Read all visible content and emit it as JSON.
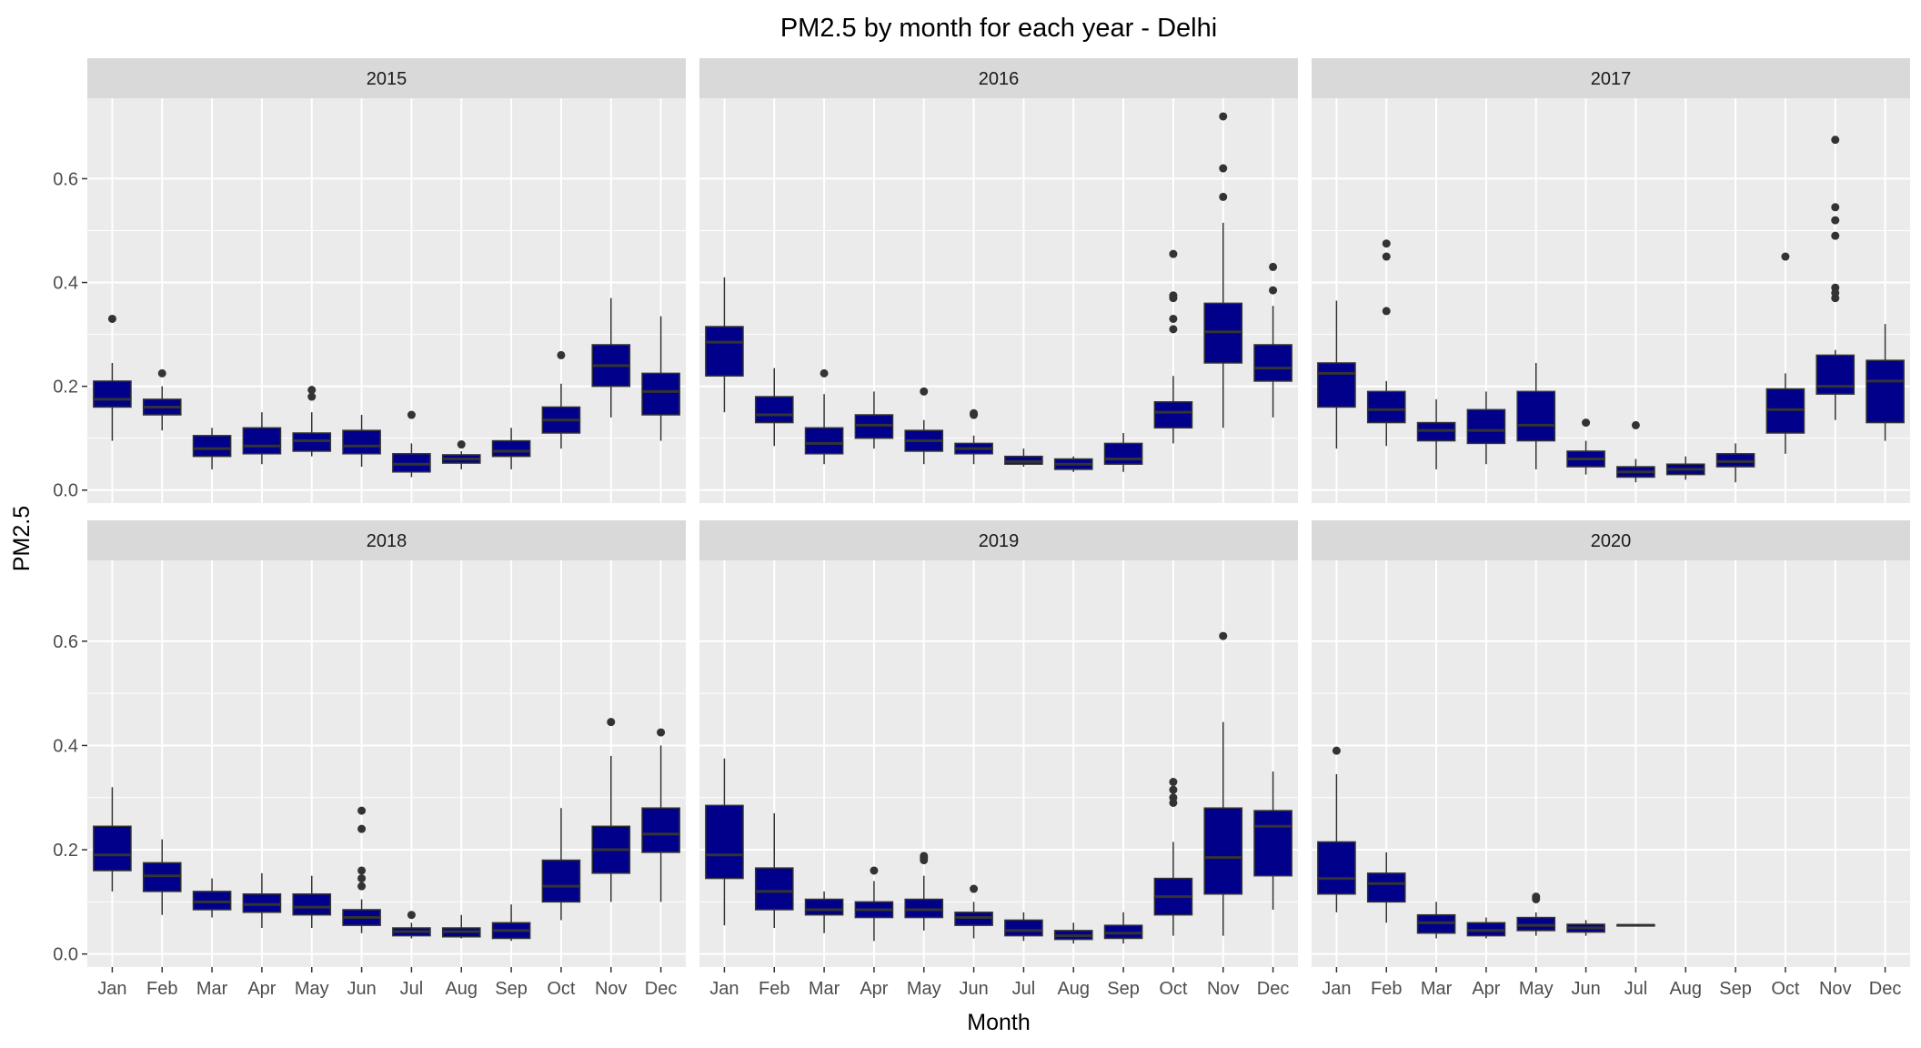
{
  "chart_data": {
    "type": "box",
    "title": "PM2.5 by month for each year - Delhi",
    "xlabel": "Month",
    "ylabel": "PM2.5",
    "ylim": [
      -0.025,
      0.755
    ],
    "yticks": [
      0.0,
      0.2,
      0.4,
      0.6
    ],
    "ytick_labels": [
      "0.0",
      "0.2",
      "0.4",
      "0.6"
    ],
    "categories": [
      "Jan",
      "Feb",
      "Mar",
      "Apr",
      "May",
      "Jun",
      "Jul",
      "Aug",
      "Sep",
      "Oct",
      "Nov",
      "Dec"
    ],
    "grid": true,
    "box_fill": "#00008B",
    "box_line": "#333333",
    "panel_bg": "#EBEBEB",
    "strip_bg": "#D9D9D9",
    "panels": [
      {
        "label": "2015",
        "boxes": [
          {
            "cat": "Jan",
            "lo": 0.095,
            "q1": 0.16,
            "med": 0.175,
            "q3": 0.21,
            "hi": 0.245,
            "outliers": [
              0.33
            ]
          },
          {
            "cat": "Feb",
            "lo": 0.115,
            "q1": 0.145,
            "med": 0.16,
            "q3": 0.175,
            "hi": 0.2,
            "outliers": [
              0.225
            ]
          },
          {
            "cat": "Mar",
            "lo": 0.04,
            "q1": 0.065,
            "med": 0.08,
            "q3": 0.105,
            "hi": 0.12,
            "outliers": []
          },
          {
            "cat": "Apr",
            "lo": 0.05,
            "q1": 0.07,
            "med": 0.085,
            "q3": 0.12,
            "hi": 0.15,
            "outliers": []
          },
          {
            "cat": "May",
            "lo": 0.065,
            "q1": 0.075,
            "med": 0.095,
            "q3": 0.11,
            "hi": 0.15,
            "outliers": [
              0.18,
              0.193
            ]
          },
          {
            "cat": "Jun",
            "lo": 0.045,
            "q1": 0.07,
            "med": 0.085,
            "q3": 0.115,
            "hi": 0.145,
            "outliers": []
          },
          {
            "cat": "Jul",
            "lo": 0.025,
            "q1": 0.035,
            "med": 0.05,
            "q3": 0.07,
            "hi": 0.09,
            "outliers": [
              0.145
            ]
          },
          {
            "cat": "Aug",
            "lo": 0.04,
            "q1": 0.052,
            "med": 0.06,
            "q3": 0.068,
            "hi": 0.075,
            "outliers": [
              0.088
            ]
          },
          {
            "cat": "Sep",
            "lo": 0.04,
            "q1": 0.065,
            "med": 0.075,
            "q3": 0.095,
            "hi": 0.12,
            "outliers": []
          },
          {
            "cat": "Oct",
            "lo": 0.08,
            "q1": 0.11,
            "med": 0.135,
            "q3": 0.16,
            "hi": 0.205,
            "outliers": [
              0.26
            ]
          },
          {
            "cat": "Nov",
            "lo": 0.14,
            "q1": 0.2,
            "med": 0.24,
            "q3": 0.28,
            "hi": 0.37,
            "outliers": []
          },
          {
            "cat": "Dec",
            "lo": 0.095,
            "q1": 0.145,
            "med": 0.19,
            "q3": 0.225,
            "hi": 0.335,
            "outliers": []
          }
        ]
      },
      {
        "label": "2016",
        "boxes": [
          {
            "cat": "Jan",
            "lo": 0.15,
            "q1": 0.22,
            "med": 0.285,
            "q3": 0.315,
            "hi": 0.41,
            "outliers": []
          },
          {
            "cat": "Feb",
            "lo": 0.085,
            "q1": 0.13,
            "med": 0.145,
            "q3": 0.18,
            "hi": 0.235,
            "outliers": []
          },
          {
            "cat": "Mar",
            "lo": 0.05,
            "q1": 0.07,
            "med": 0.09,
            "q3": 0.12,
            "hi": 0.185,
            "outliers": [
              0.225
            ]
          },
          {
            "cat": "Apr",
            "lo": 0.08,
            "q1": 0.1,
            "med": 0.125,
            "q3": 0.145,
            "hi": 0.19,
            "outliers": []
          },
          {
            "cat": "May",
            "lo": 0.05,
            "q1": 0.075,
            "med": 0.095,
            "q3": 0.115,
            "hi": 0.135,
            "outliers": [
              0.19
            ]
          },
          {
            "cat": "Jun",
            "lo": 0.05,
            "q1": 0.07,
            "med": 0.08,
            "q3": 0.09,
            "hi": 0.105,
            "outliers": [
              0.145,
              0.148
            ]
          },
          {
            "cat": "Jul",
            "lo": 0.045,
            "q1": 0.05,
            "med": 0.055,
            "q3": 0.065,
            "hi": 0.08,
            "outliers": []
          },
          {
            "cat": "Aug",
            "lo": 0.035,
            "q1": 0.04,
            "med": 0.05,
            "q3": 0.06,
            "hi": 0.065,
            "outliers": []
          },
          {
            "cat": "Sep",
            "lo": 0.035,
            "q1": 0.05,
            "med": 0.06,
            "q3": 0.09,
            "hi": 0.11,
            "outliers": []
          },
          {
            "cat": "Oct",
            "lo": 0.09,
            "q1": 0.12,
            "med": 0.15,
            "q3": 0.17,
            "hi": 0.22,
            "outliers": [
              0.31,
              0.33,
              0.37,
              0.375,
              0.455
            ]
          },
          {
            "cat": "Nov",
            "lo": 0.12,
            "q1": 0.245,
            "med": 0.305,
            "q3": 0.36,
            "hi": 0.515,
            "outliers": [
              0.565,
              0.62,
              0.72
            ]
          },
          {
            "cat": "Dec",
            "lo": 0.14,
            "q1": 0.21,
            "med": 0.235,
            "q3": 0.28,
            "hi": 0.355,
            "outliers": [
              0.385,
              0.43
            ]
          }
        ]
      },
      {
        "label": "2017",
        "boxes": [
          {
            "cat": "Jan",
            "lo": 0.08,
            "q1": 0.16,
            "med": 0.225,
            "q3": 0.245,
            "hi": 0.365,
            "outliers": []
          },
          {
            "cat": "Feb",
            "lo": 0.085,
            "q1": 0.13,
            "med": 0.155,
            "q3": 0.19,
            "hi": 0.21,
            "outliers": [
              0.345,
              0.45,
              0.475
            ]
          },
          {
            "cat": "Mar",
            "lo": 0.04,
            "q1": 0.095,
            "med": 0.115,
            "q3": 0.13,
            "hi": 0.175,
            "outliers": []
          },
          {
            "cat": "Apr",
            "lo": 0.05,
            "q1": 0.09,
            "med": 0.115,
            "q3": 0.155,
            "hi": 0.19,
            "outliers": []
          },
          {
            "cat": "May",
            "lo": 0.04,
            "q1": 0.095,
            "med": 0.125,
            "q3": 0.19,
            "hi": 0.245,
            "outliers": []
          },
          {
            "cat": "Jun",
            "lo": 0.03,
            "q1": 0.045,
            "med": 0.06,
            "q3": 0.075,
            "hi": 0.095,
            "outliers": [
              0.13
            ]
          },
          {
            "cat": "Jul",
            "lo": 0.015,
            "q1": 0.025,
            "med": 0.035,
            "q3": 0.045,
            "hi": 0.06,
            "outliers": [
              0.125
            ]
          },
          {
            "cat": "Aug",
            "lo": 0.02,
            "q1": 0.03,
            "med": 0.04,
            "q3": 0.05,
            "hi": 0.065,
            "outliers": []
          },
          {
            "cat": "Sep",
            "lo": 0.015,
            "q1": 0.045,
            "med": 0.055,
            "q3": 0.07,
            "hi": 0.09,
            "outliers": []
          },
          {
            "cat": "Oct",
            "lo": 0.07,
            "q1": 0.11,
            "med": 0.155,
            "q3": 0.195,
            "hi": 0.225,
            "outliers": [
              0.45
            ]
          },
          {
            "cat": "Nov",
            "lo": 0.135,
            "q1": 0.185,
            "med": 0.2,
            "q3": 0.26,
            "hi": 0.27,
            "outliers": [
              0.37,
              0.38,
              0.39,
              0.49,
              0.52,
              0.545,
              0.675
            ]
          },
          {
            "cat": "Dec",
            "lo": 0.095,
            "q1": 0.13,
            "med": 0.21,
            "q3": 0.25,
            "hi": 0.32,
            "outliers": []
          }
        ]
      },
      {
        "label": "2018",
        "boxes": [
          {
            "cat": "Jan",
            "lo": 0.12,
            "q1": 0.16,
            "med": 0.19,
            "q3": 0.245,
            "hi": 0.32,
            "outliers": []
          },
          {
            "cat": "Feb",
            "lo": 0.075,
            "q1": 0.12,
            "med": 0.15,
            "q3": 0.175,
            "hi": 0.22,
            "outliers": []
          },
          {
            "cat": "Mar",
            "lo": 0.07,
            "q1": 0.085,
            "med": 0.1,
            "q3": 0.12,
            "hi": 0.145,
            "outliers": []
          },
          {
            "cat": "Apr",
            "lo": 0.05,
            "q1": 0.08,
            "med": 0.095,
            "q3": 0.115,
            "hi": 0.155,
            "outliers": []
          },
          {
            "cat": "May",
            "lo": 0.05,
            "q1": 0.075,
            "med": 0.09,
            "q3": 0.115,
            "hi": 0.15,
            "outliers": []
          },
          {
            "cat": "Jun",
            "lo": 0.04,
            "q1": 0.055,
            "med": 0.07,
            "q3": 0.085,
            "hi": 0.105,
            "outliers": [
              0.13,
              0.145,
              0.16,
              0.24,
              0.275
            ]
          },
          {
            "cat": "Jul",
            "lo": 0.03,
            "q1": 0.035,
            "med": 0.043,
            "q3": 0.05,
            "hi": 0.06,
            "outliers": [
              0.075
            ]
          },
          {
            "cat": "Aug",
            "lo": 0.03,
            "q1": 0.033,
            "med": 0.043,
            "q3": 0.05,
            "hi": 0.075,
            "outliers": []
          },
          {
            "cat": "Sep",
            "lo": 0.025,
            "q1": 0.03,
            "med": 0.045,
            "q3": 0.06,
            "hi": 0.095,
            "outliers": []
          },
          {
            "cat": "Oct",
            "lo": 0.065,
            "q1": 0.1,
            "med": 0.13,
            "q3": 0.18,
            "hi": 0.28,
            "outliers": []
          },
          {
            "cat": "Nov",
            "lo": 0.1,
            "q1": 0.155,
            "med": 0.2,
            "q3": 0.245,
            "hi": 0.38,
            "outliers": [
              0.445
            ]
          },
          {
            "cat": "Dec",
            "lo": 0.1,
            "q1": 0.195,
            "med": 0.23,
            "q3": 0.28,
            "hi": 0.4,
            "outliers": [
              0.425
            ]
          }
        ]
      },
      {
        "label": "2019",
        "boxes": [
          {
            "cat": "Jan",
            "lo": 0.055,
            "q1": 0.145,
            "med": 0.19,
            "q3": 0.285,
            "hi": 0.375,
            "outliers": []
          },
          {
            "cat": "Feb",
            "lo": 0.05,
            "q1": 0.085,
            "med": 0.12,
            "q3": 0.165,
            "hi": 0.27,
            "outliers": []
          },
          {
            "cat": "Mar",
            "lo": 0.04,
            "q1": 0.075,
            "med": 0.085,
            "q3": 0.105,
            "hi": 0.12,
            "outliers": []
          },
          {
            "cat": "Apr",
            "lo": 0.025,
            "q1": 0.07,
            "med": 0.085,
            "q3": 0.1,
            "hi": 0.14,
            "outliers": [
              0.16
            ]
          },
          {
            "cat": "May",
            "lo": 0.045,
            "q1": 0.07,
            "med": 0.085,
            "q3": 0.105,
            "hi": 0.15,
            "outliers": [
              0.18,
              0.185,
              0.188
            ]
          },
          {
            "cat": "Jun",
            "lo": 0.03,
            "q1": 0.055,
            "med": 0.07,
            "q3": 0.08,
            "hi": 0.1,
            "outliers": [
              0.125
            ]
          },
          {
            "cat": "Jul",
            "lo": 0.025,
            "q1": 0.035,
            "med": 0.045,
            "q3": 0.065,
            "hi": 0.08,
            "outliers": []
          },
          {
            "cat": "Aug",
            "lo": 0.02,
            "q1": 0.028,
            "med": 0.035,
            "q3": 0.045,
            "hi": 0.06,
            "outliers": []
          },
          {
            "cat": "Sep",
            "lo": 0.02,
            "q1": 0.03,
            "med": 0.04,
            "q3": 0.055,
            "hi": 0.08,
            "outliers": []
          },
          {
            "cat": "Oct",
            "lo": 0.035,
            "q1": 0.075,
            "med": 0.11,
            "q3": 0.145,
            "hi": 0.215,
            "outliers": [
              0.29,
              0.3,
              0.315,
              0.33
            ]
          },
          {
            "cat": "Nov",
            "lo": 0.035,
            "q1": 0.115,
            "med": 0.185,
            "q3": 0.28,
            "hi": 0.445,
            "outliers": [
              0.61
            ]
          },
          {
            "cat": "Dec",
            "lo": 0.085,
            "q1": 0.15,
            "med": 0.245,
            "q3": 0.275,
            "hi": 0.35,
            "outliers": []
          }
        ]
      },
      {
        "label": "2020",
        "boxes": [
          {
            "cat": "Jan",
            "lo": 0.08,
            "q1": 0.115,
            "med": 0.145,
            "q3": 0.215,
            "hi": 0.345,
            "outliers": [
              0.39
            ]
          },
          {
            "cat": "Feb",
            "lo": 0.06,
            "q1": 0.1,
            "med": 0.135,
            "q3": 0.155,
            "hi": 0.195,
            "outliers": []
          },
          {
            "cat": "Mar",
            "lo": 0.03,
            "q1": 0.04,
            "med": 0.06,
            "q3": 0.075,
            "hi": 0.1,
            "outliers": []
          },
          {
            "cat": "Apr",
            "lo": 0.03,
            "q1": 0.035,
            "med": 0.045,
            "q3": 0.06,
            "hi": 0.07,
            "outliers": []
          },
          {
            "cat": "May",
            "lo": 0.035,
            "q1": 0.045,
            "med": 0.055,
            "q3": 0.07,
            "hi": 0.08,
            "outliers": [
              0.105,
              0.11
            ]
          },
          {
            "cat": "Jun",
            "lo": 0.035,
            "q1": 0.042,
            "med": 0.05,
            "q3": 0.057,
            "hi": 0.065,
            "outliers": []
          },
          {
            "cat": "Jul",
            "lo": 0.054,
            "q1": 0.054,
            "med": 0.055,
            "q3": 0.056,
            "hi": 0.056,
            "outliers": []
          }
        ]
      }
    ]
  }
}
